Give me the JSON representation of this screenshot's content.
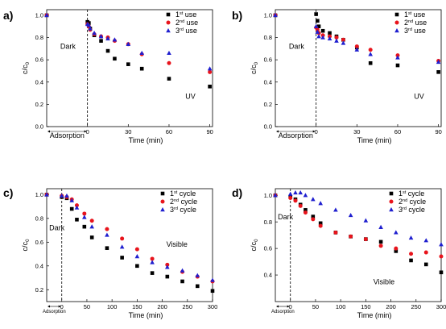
{
  "chart_data": [
    {
      "panel_label": "a)",
      "type": "scatter",
      "xlabel": "Time (min)",
      "ylabel": "c/c0",
      "xlim": [
        -30,
        92
      ],
      "ylim": [
        0.0,
        1.05
      ],
      "xticks": [
        0,
        30,
        60,
        90
      ],
      "yticks": [
        0.0,
        0.2,
        0.4,
        0.6,
        0.8,
        1.0
      ],
      "legend_position": "top-right",
      "annotations": [
        {
          "text": "Dark",
          "x": -20,
          "y": 0.7
        },
        {
          "text": "UV",
          "x": 72,
          "y": 0.25
        },
        {
          "text": "Adsorption",
          "x": -20,
          "y": -0.07
        }
      ],
      "series": [
        {
          "name": "1st use",
          "marker": "square",
          "color": "#000000",
          "x": [
            -30,
            0,
            1,
            2,
            5,
            10,
            15,
            20,
            30,
            40,
            60,
            90
          ],
          "y": [
            1.0,
            0.94,
            0.93,
            0.88,
            0.82,
            0.77,
            0.68,
            0.61,
            0.56,
            0.52,
            0.43,
            0.36
          ]
        },
        {
          "name": "2nd use",
          "marker": "circle",
          "color": "#e8141c",
          "x": [
            -30,
            0,
            1,
            2,
            5,
            10,
            15,
            20,
            30,
            40,
            60,
            90
          ],
          "y": [
            1.0,
            0.92,
            0.9,
            0.87,
            0.83,
            0.81,
            0.8,
            0.77,
            0.74,
            0.65,
            0.57,
            0.49
          ]
        },
        {
          "name": "3rd use",
          "marker": "triangle",
          "color": "#1f1fcf",
          "x": [
            -30,
            0,
            1,
            2,
            5,
            10,
            15,
            20,
            30,
            40,
            60,
            90
          ],
          "y": [
            1.0,
            0.92,
            0.91,
            0.88,
            0.84,
            0.81,
            0.79,
            0.78,
            0.74,
            0.66,
            0.66,
            0.52
          ]
        }
      ]
    },
    {
      "panel_label": "b)",
      "type": "scatter",
      "xlabel": "Time (min)",
      "ylabel": "c/c0",
      "xlim": [
        -30,
        92
      ],
      "ylim": [
        0.0,
        1.05
      ],
      "xticks": [
        0,
        30,
        60,
        90
      ],
      "yticks": [
        0.0,
        0.2,
        0.4,
        0.6,
        0.8,
        1.0
      ],
      "legend_position": "top-right",
      "annotations": [
        {
          "text": "Dark",
          "x": -20,
          "y": 0.7
        },
        {
          "text": "UV",
          "x": 72,
          "y": 0.25
        },
        {
          "text": "Adsorption",
          "x": -20,
          "y": -0.07
        }
      ],
      "series": [
        {
          "name": "1st use",
          "marker": "square",
          "color": "#000000",
          "x": [
            -30,
            0,
            1,
            2,
            5,
            10,
            15,
            20,
            30,
            40,
            60,
            90
          ],
          "y": [
            1.0,
            1.01,
            0.95,
            0.9,
            0.86,
            0.84,
            0.81,
            0.78,
            0.71,
            0.57,
            0.55,
            0.49
          ]
        },
        {
          "name": "2nd use",
          "marker": "circle",
          "color": "#e8141c",
          "x": [
            -30,
            0,
            1,
            2,
            5,
            10,
            15,
            20,
            30,
            40,
            60,
            90
          ],
          "y": [
            1.0,
            0.89,
            0.87,
            0.84,
            0.82,
            0.81,
            0.8,
            0.78,
            0.72,
            0.69,
            0.64,
            0.59
          ]
        },
        {
          "name": "3rd use",
          "marker": "triangle",
          "color": "#1f1fcf",
          "x": [
            -30,
            0,
            1,
            2,
            5,
            10,
            15,
            20,
            30,
            40,
            60,
            90
          ],
          "y": [
            1.0,
            0.9,
            0.85,
            0.81,
            0.8,
            0.79,
            0.77,
            0.75,
            0.69,
            0.65,
            0.62,
            0.58
          ]
        }
      ]
    },
    {
      "panel_label": "c)",
      "type": "scatter",
      "xlabel": "Time (min)",
      "ylabel": "c/c0",
      "xlim": [
        -30,
        300
      ],
      "ylim": [
        0.1,
        1.05
      ],
      "xticks": [
        0,
        50,
        100,
        150,
        200,
        250,
        300
      ],
      "yticks": [
        0.2,
        0.4,
        0.6,
        0.8,
        1.0
      ],
      "legend_position": "top-right",
      "annotations": [
        {
          "text": "Dark",
          "x": -25,
          "y": 0.7
        },
        {
          "text": "Visible",
          "x": 208,
          "y": 0.56
        },
        {
          "text": "Adsorption",
          "x": -20,
          "y": 0.02
        }
      ],
      "series": [
        {
          "name": "1st cycle",
          "marker": "square",
          "color": "#000000",
          "x": [
            -30,
            0,
            10,
            20,
            30,
            45,
            60,
            90,
            120,
            150,
            180,
            210,
            240,
            270,
            300
          ],
          "y": [
            1.0,
            0.98,
            0.97,
            0.88,
            0.79,
            0.73,
            0.64,
            0.55,
            0.47,
            0.4,
            0.34,
            0.31,
            0.27,
            0.23,
            0.19
          ]
        },
        {
          "name": "2nd cycle",
          "marker": "circle",
          "color": "#e8141c",
          "x": [
            -30,
            0,
            10,
            20,
            30,
            45,
            60,
            90,
            120,
            150,
            180,
            210,
            240,
            270,
            300
          ],
          "y": [
            1.0,
            0.99,
            0.98,
            0.96,
            0.91,
            0.84,
            0.78,
            0.71,
            0.63,
            0.54,
            0.46,
            0.41,
            0.35,
            0.31,
            0.27
          ]
        },
        {
          "name": "3rd cycle",
          "marker": "triangle",
          "color": "#1f1fcf",
          "x": [
            -30,
            0,
            10,
            20,
            30,
            45,
            60,
            90,
            120,
            150,
            180,
            210,
            240,
            270,
            300
          ],
          "y": [
            1.0,
            0.99,
            0.99,
            0.95,
            0.89,
            0.81,
            0.73,
            0.66,
            0.56,
            0.48,
            0.43,
            0.39,
            0.36,
            0.32,
            0.28
          ]
        }
      ]
    },
    {
      "panel_label": "d)",
      "type": "scatter",
      "xlabel": "Time (min)",
      "ylabel": "c/c0",
      "xlim": [
        -30,
        300
      ],
      "ylim": [
        0.2,
        1.05
      ],
      "xticks": [
        0,
        50,
        100,
        150,
        200,
        250,
        300
      ],
      "yticks": [
        0.4,
        0.6,
        0.8,
        1.0
      ],
      "legend_position": "top-right",
      "annotations": [
        {
          "text": "Dark",
          "x": -25,
          "y": 0.82
        },
        {
          "text": "Visible",
          "x": 165,
          "y": 0.33
        },
        {
          "text": "Adsorption",
          "x": -20,
          "y": 0.13
        }
      ],
      "series": [
        {
          "name": "1st cycle",
          "marker": "square",
          "color": "#000000",
          "x": [
            -30,
            0,
            10,
            20,
            30,
            45,
            60,
            90,
            120,
            150,
            180,
            210,
            240,
            270,
            300
          ],
          "y": [
            1.0,
            0.99,
            0.97,
            0.93,
            0.89,
            0.84,
            0.79,
            0.72,
            0.69,
            0.67,
            0.65,
            0.58,
            0.51,
            0.48,
            0.42
          ]
        },
        {
          "name": "2nd cycle",
          "marker": "circle",
          "color": "#e8141c",
          "x": [
            -30,
            0,
            10,
            20,
            30,
            45,
            60,
            90,
            120,
            150,
            180,
            210,
            240,
            270,
            300
          ],
          "y": [
            1.0,
            0.98,
            0.96,
            0.92,
            0.87,
            0.82,
            0.77,
            0.72,
            0.69,
            0.67,
            0.62,
            0.6,
            0.56,
            0.57,
            0.54
          ]
        },
        {
          "name": "3rd cycle",
          "marker": "triangle",
          "color": "#1f1fcf",
          "x": [
            -30,
            0,
            10,
            20,
            30,
            45,
            60,
            90,
            120,
            150,
            180,
            210,
            240,
            270,
            300
          ],
          "y": [
            1.0,
            1.01,
            1.02,
            1.02,
            1.0,
            0.97,
            0.94,
            0.89,
            0.85,
            0.81,
            0.76,
            0.72,
            0.68,
            0.66,
            0.63
          ]
        }
      ]
    }
  ]
}
